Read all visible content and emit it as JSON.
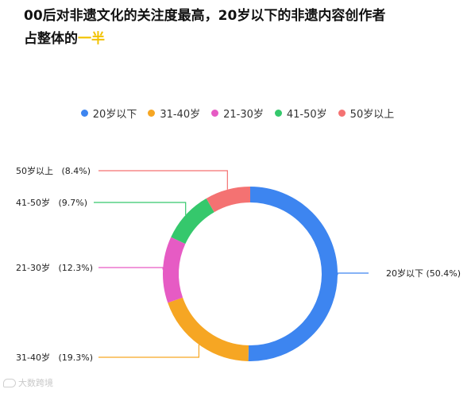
{
  "title": {
    "line1": "00后对非遗文化的关注度最高，20岁以下的非遗内容创作者",
    "line2_prefix": "占整体的",
    "line2_highlight": "一半"
  },
  "colors": {
    "highlight": "#f2c200"
  },
  "watermark": {
    "text": "大数跨境",
    "icon": "bubble-logo-icon"
  },
  "chart_data": {
    "type": "pie",
    "variant": "donut",
    "title": "",
    "legend_position": "top",
    "categories": [
      "20岁以下",
      "31-40岁",
      "21-30岁",
      "41-50岁",
      "50岁以上"
    ],
    "values": [
      50.4,
      19.3,
      12.3,
      9.7,
      8.4
    ],
    "unit": "%",
    "colors": [
      "#3d85f0",
      "#f6a623",
      "#e65bc4",
      "#35c86c",
      "#f47272"
    ],
    "data_labels": [
      "20岁以下 (50.4%)",
      "31-40岁   (19.3%)",
      "21-30岁   (12.3%)",
      "41-50岁   (9.7%)",
      "50岁以上   (8.4%)"
    ]
  }
}
